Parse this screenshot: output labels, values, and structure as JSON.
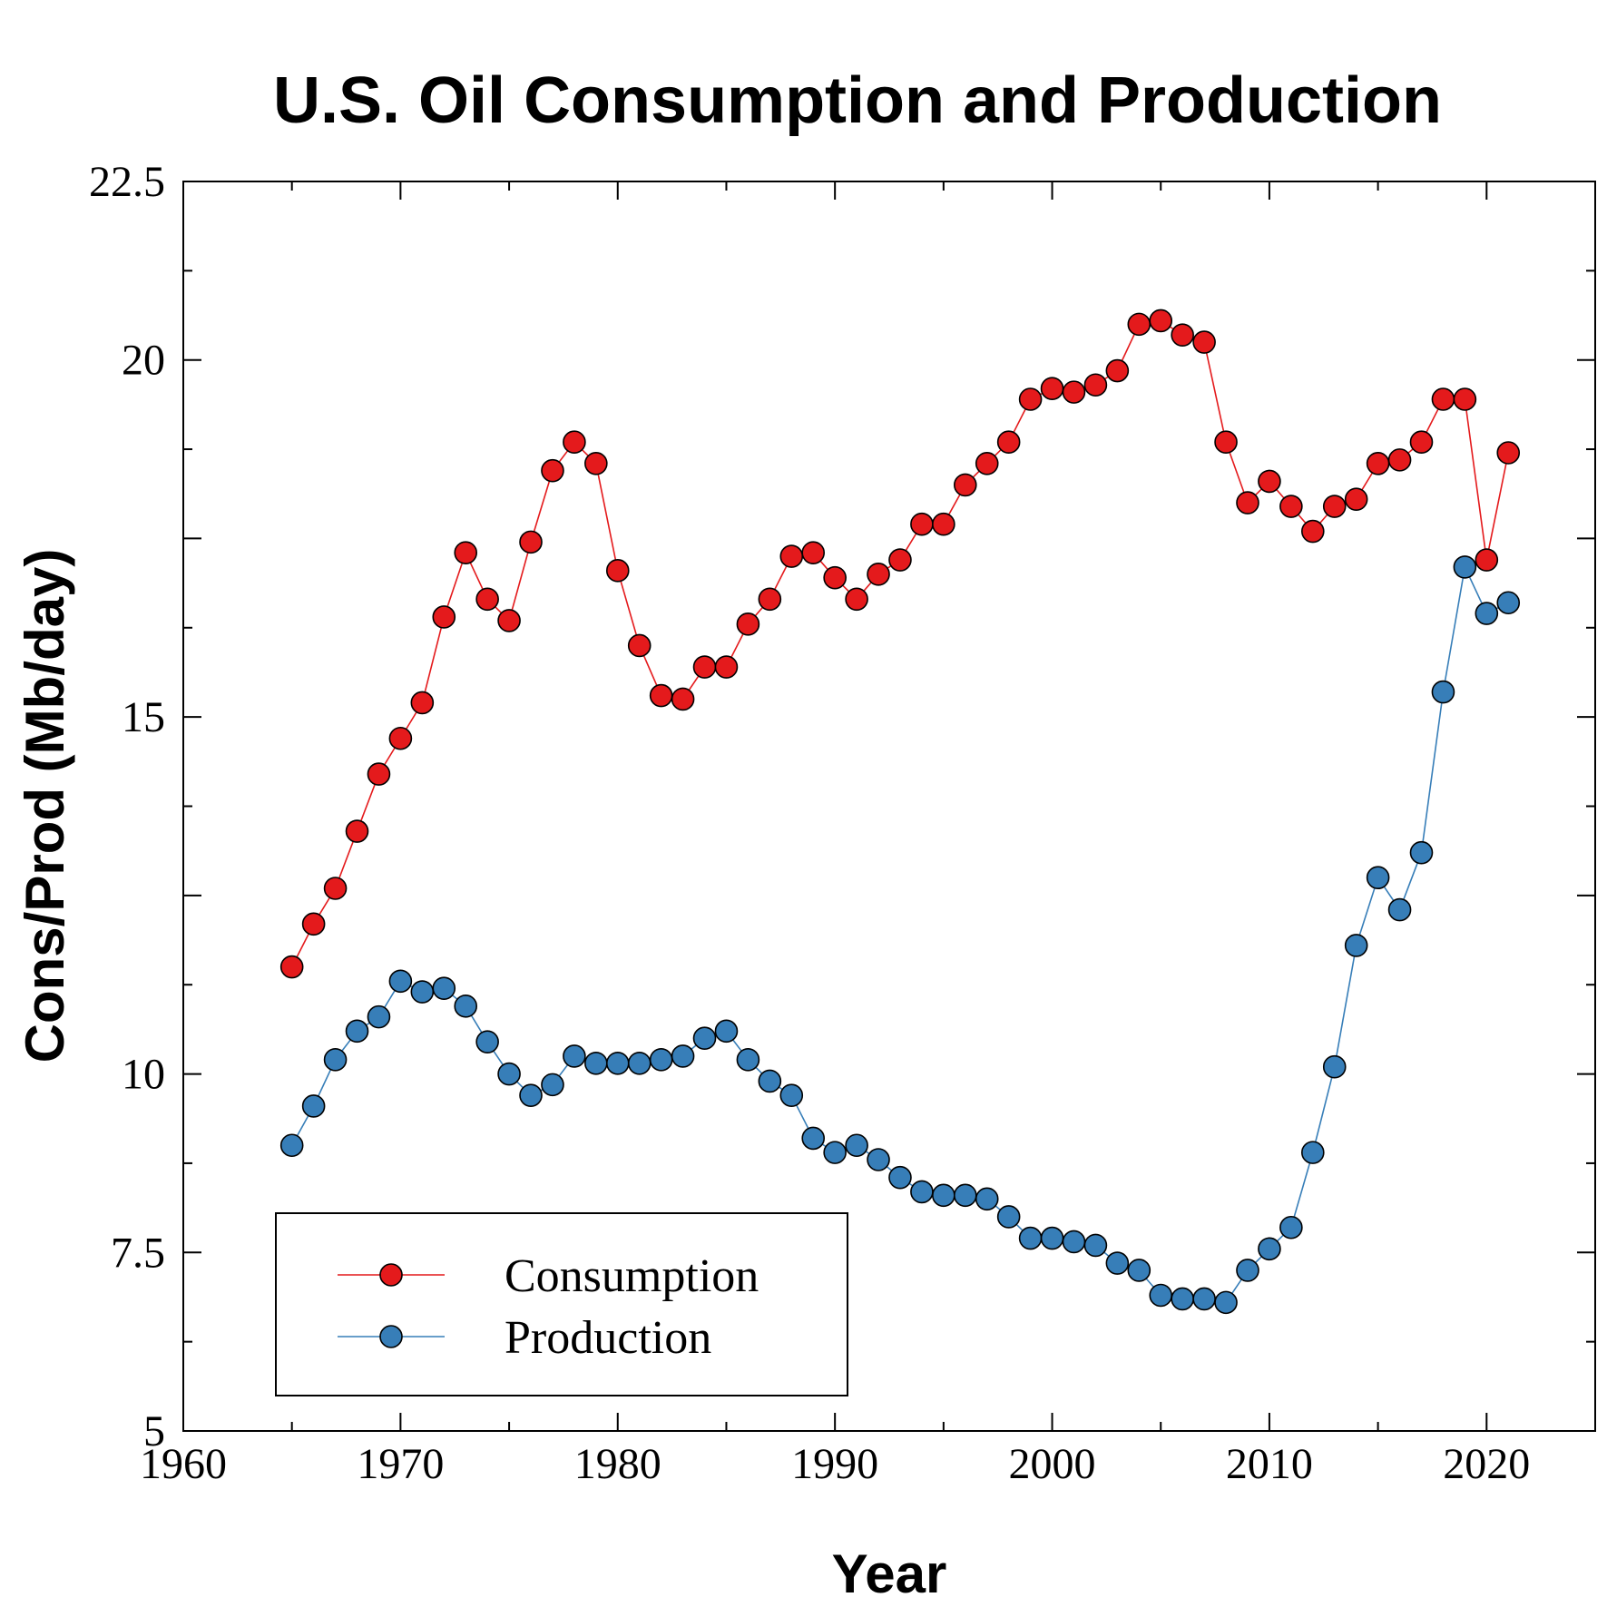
{
  "chart_data": {
    "type": "line",
    "title": "U.S. Oil Consumption and Production",
    "xlabel": "Year",
    "ylabel": "Cons/Prod (Mb/day)",
    "xlim": [
      1960,
      2025
    ],
    "ylim": [
      5,
      22.5
    ],
    "x_ticks": [
      1960,
      1970,
      1980,
      1990,
      2000,
      2010,
      2020
    ],
    "x_tick_labels": [
      "1960",
      "1970",
      "1980",
      "1990",
      "2000",
      "2010",
      "2020"
    ],
    "y_ticks": [
      5,
      7.5,
      10,
      15,
      20,
      22.5
    ],
    "y_tick_labels": [
      "5",
      "7.5",
      "10",
      "15",
      "20",
      "22.5"
    ],
    "grid": false,
    "legend_position": "bottom-left",
    "x": [
      1965,
      1966,
      1967,
      1968,
      1969,
      1970,
      1971,
      1972,
      1973,
      1974,
      1975,
      1976,
      1977,
      1978,
      1979,
      1980,
      1981,
      1982,
      1983,
      1984,
      1985,
      1986,
      1987,
      1988,
      1989,
      1990,
      1991,
      1992,
      1993,
      1994,
      1995,
      1996,
      1997,
      1998,
      1999,
      2000,
      2001,
      2002,
      2003,
      2004,
      2005,
      2006,
      2007,
      2008,
      2009,
      2010,
      2011,
      2012,
      2013,
      2014,
      2015,
      2016,
      2017,
      2018,
      2019,
      2020,
      2021
    ],
    "series": [
      {
        "name": "Consumption",
        "color": "#e41a1c",
        "values": [
          11.5,
          12.1,
          12.6,
          13.4,
          14.2,
          14.7,
          15.2,
          16.4,
          17.3,
          16.65,
          16.35,
          17.45,
          18.45,
          18.85,
          18.55,
          17.05,
          16.0,
          15.3,
          15.25,
          15.7,
          15.7,
          16.3,
          16.65,
          17.25,
          17.3,
          16.95,
          16.65,
          17.0,
          17.2,
          17.7,
          17.7,
          18.25,
          18.55,
          18.85,
          19.45,
          19.6,
          19.55,
          19.65,
          19.85,
          20.5,
          20.55,
          20.35,
          20.25,
          18.85,
          18.0,
          18.3,
          17.95,
          17.6,
          17.95,
          18.05,
          18.55,
          18.6,
          18.85,
          19.45,
          19.45,
          17.2,
          18.7
        ]
      },
      {
        "name": "Production",
        "color": "#377eb8",
        "values": [
          9.0,
          9.55,
          10.2,
          10.6,
          10.8,
          11.3,
          11.15,
          11.2,
          10.95,
          10.45,
          10.0,
          9.7,
          9.85,
          10.25,
          10.15,
          10.15,
          10.15,
          10.2,
          10.25,
          10.5,
          10.6,
          10.2,
          9.9,
          9.7,
          9.1,
          8.9,
          9.0,
          8.8,
          8.55,
          8.35,
          8.3,
          8.3,
          8.25,
          8.0,
          7.7,
          7.7,
          7.65,
          7.6,
          7.35,
          7.25,
          6.9,
          6.85,
          6.85,
          6.8,
          7.25,
          7.55,
          7.85,
          8.9,
          10.1,
          11.8,
          12.75,
          12.3,
          13.1,
          15.35,
          17.1,
          16.45,
          16.6
        ]
      }
    ]
  }
}
